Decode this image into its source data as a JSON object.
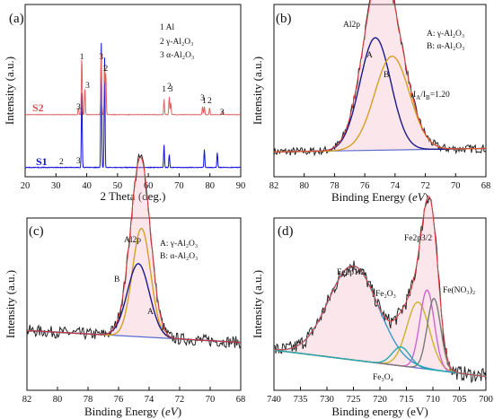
{
  "figure": {
    "panels": [
      {
        "tag": "(a)",
        "type": "line",
        "xlabel": "2 Theta (deg.)",
        "ylabel": "Intensity (a.u.)",
        "xlim": [
          20,
          90
        ],
        "xticks": [
          20,
          30,
          40,
          50,
          60,
          70,
          80,
          90
        ],
        "legend_lines": [
          "1   Al",
          "2   γ-Al₂O₃",
          "3   α-Al₂O₃"
        ],
        "series_labels": [
          "S2",
          "S1"
        ],
        "peak_labels_s2": [
          "3",
          "1",
          "3",
          "3",
          "1",
          "2",
          "1",
          "2",
          "3",
          "3",
          "1",
          "2",
          "3"
        ],
        "peak_labels_s1": [
          "2",
          "3"
        ]
      },
      {
        "tag": "(b)",
        "type": "line",
        "xlabel": "Binding Energy (eV)",
        "xlabel_main": "Binding Energy (",
        "xlabel_unit": "eV",
        "xlabel_end": ")",
        "ylabel": "Intensity (a.u.)",
        "xlim": [
          82,
          68
        ],
        "xticks": [
          82,
          80,
          78,
          76,
          74,
          72,
          70,
          68
        ],
        "title": "Al2p",
        "legend_lines": [
          "A: γ-Al₂O₃",
          "B: α-Al₂O₃"
        ],
        "peak_letters": [
          "A",
          "B"
        ],
        "ratio_text": "Iₐ/Iʙ=1.20",
        "ratio_main": "I",
        "ratio_sub1": "A",
        "ratio_mid": "/I",
        "ratio_sub2": "B",
        "ratio_end": "=1.20"
      },
      {
        "tag": "(c)",
        "type": "line",
        "xlabel_main": "Binding Energy (",
        "xlabel_unit": "eV",
        "xlabel_end": ")",
        "ylabel": "Intensity (a.u.)",
        "xlim": [
          82,
          68
        ],
        "xticks": [
          82,
          80,
          78,
          76,
          74,
          72,
          70,
          68
        ],
        "title": "Al2p",
        "legend_lines": [
          "A: γ-Al₂O₃",
          "B: α-Al₂O₃"
        ],
        "peak_letters": [
          "B",
          "A"
        ]
      },
      {
        "tag": "(d)",
        "type": "line",
        "xlabel": "Binding energy (eV)",
        "ylabel": "Intensity (a.u.)",
        "xlim": [
          740,
          700
        ],
        "xticks": [
          740,
          735,
          730,
          725,
          720,
          715,
          710,
          705,
          700
        ],
        "annotations": [
          "Fe2p1/2",
          "Fe2p3/2",
          "Fe₂O₃",
          "Fe(NO₃)₂",
          "Fe₃O₄"
        ]
      }
    ]
  },
  "chart_data": [
    {
      "type": "line",
      "title": "",
      "xlabel": "2 Theta (deg.)",
      "ylabel": "Intensity (a.u.)",
      "xlim": [
        20,
        90
      ],
      "series": [
        {
          "name": "S1",
          "color": "#1010e0",
          "peaks": [
            [
              38.4,
              0.48
            ],
            [
              44.7,
              0.78
            ],
            [
              45.8,
              0.68
            ],
            [
              65.1,
              0.14
            ],
            [
              66.8,
              0.08
            ],
            [
              78.2,
              0.11
            ],
            [
              82.4,
              0.09
            ]
          ]
        },
        {
          "name": "S2",
          "color": "#e06060",
          "peaks": [
            [
              37.3,
              0.07
            ],
            [
              38.4,
              0.58
            ],
            [
              39.4,
              0.27
            ],
            [
              44.7,
              0.63
            ],
            [
              45.8,
              0.48
            ],
            [
              46.2,
              0.42
            ],
            [
              65.1,
              0.16
            ],
            [
              66.8,
              0.18
            ],
            [
              67.3,
              0.12
            ],
            [
              77.6,
              0.08
            ],
            [
              78.2,
              0.08
            ],
            [
              79.9,
              0.07
            ],
            [
              84.0,
              0.04
            ]
          ]
        }
      ]
    },
    {
      "type": "line",
      "title": "Al2p",
      "xlabel": "Binding Energy (eV)",
      "ylabel": "Intensity (a.u.)",
      "xlim": [
        82,
        68
      ],
      "series": [
        {
          "name": "A",
          "component": "γ-Al₂O₃",
          "center": 75.3,
          "height": 0.66,
          "fwhm": 2.4,
          "color": "#1a1a8c"
        },
        {
          "name": "B",
          "component": "α-Al₂O₃",
          "center": 74.2,
          "height": 0.55,
          "fwhm": 2.7,
          "color": "#d4a020"
        }
      ],
      "background": [
        [
          82,
          0.03
        ],
        [
          68,
          0.05
        ]
      ],
      "ratio": 1.2
    },
    {
      "type": "line",
      "title": "Al2p",
      "xlabel": "Binding Energy (eV)",
      "ylabel": "Intensity (a.u.)",
      "xlim": [
        82,
        68
      ],
      "series": [
        {
          "name": "B",
          "component": "α-Al₂O₃",
          "center": 74.5,
          "height": 0.55,
          "fwhm": 1.4,
          "color": "#d4a020"
        },
        {
          "name": "A",
          "component": "γ-Al₂O₃",
          "center": 74.7,
          "height": 0.37,
          "fwhm": 1.7,
          "color": "#1a1a8c"
        }
      ],
      "background": [
        [
          82,
          0.18
        ],
        [
          68,
          0.12
        ]
      ]
    },
    {
      "type": "line",
      "title": "",
      "xlabel": "Binding energy (eV)",
      "ylabel": "Intensity (a.u.)",
      "xlim": [
        740,
        700
      ],
      "series": [
        {
          "name": "Fe2p1/2",
          "center": 725.0,
          "height": 0.5,
          "fwhm": 11.0,
          "color": "#3399cc"
        },
        {
          "name": "Fe₂O₃",
          "center": 712.8,
          "height": 0.35,
          "fwhm": 5.0,
          "color": "#c8b428"
        },
        {
          "name": "Fe2p3/2",
          "center": 711.1,
          "height": 0.42,
          "fwhm": 3.2,
          "color": "#cc66cc"
        },
        {
          "name": "Fe(NO₃)₂",
          "center": 709.8,
          "height": 0.38,
          "fwhm": 3.0,
          "color": "#7a7a7a"
        },
        {
          "name": "Fe₃O₄",
          "center": 716.0,
          "height": 0.1,
          "fwhm": 4.0,
          "color": "#22aaaa"
        }
      ],
      "background": [
        [
          740,
          0.18
        ],
        [
          700,
          0.04
        ]
      ]
    }
  ]
}
